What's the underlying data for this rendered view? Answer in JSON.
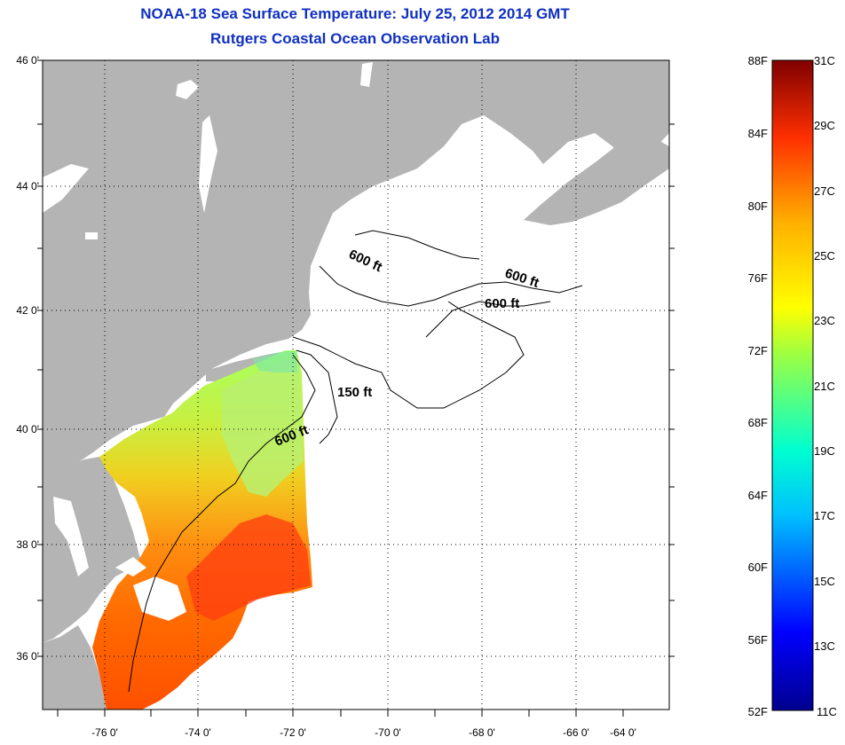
{
  "title_line1": "NOAA-18 Sea Surface Temperature:  July 25, 2012 2014 GMT",
  "title_line2": "Rutgers Coastal Ocean Observation Lab",
  "lat_labels": [
    "46 0'",
    "44 0'",
    "42 0'",
    "40 0'",
    "38 0'",
    "36 0'"
  ],
  "lon_labels": [
    "-76 0'",
    "-74 0'",
    "-72 0'",
    "-70 0'",
    "-68 0'",
    "-66 0'",
    "-64 0'"
  ],
  "contours": [
    "600 ft",
    "600 ft",
    "600 ft",
    "150 ft",
    "600 ft"
  ],
  "colorbar": {
    "f_labels": [
      "88F",
      "84F",
      "80F",
      "76F",
      "72F",
      "68F",
      "64F",
      "60F",
      "56F",
      "52F"
    ],
    "c_labels": [
      "31C",
      "29C",
      "27C",
      "25C",
      "23C",
      "21C",
      "19C",
      "17C",
      "15C",
      "13C",
      "11C"
    ]
  },
  "colors": {
    "land": "#b4b4b4",
    "title": "#1030c0"
  }
}
